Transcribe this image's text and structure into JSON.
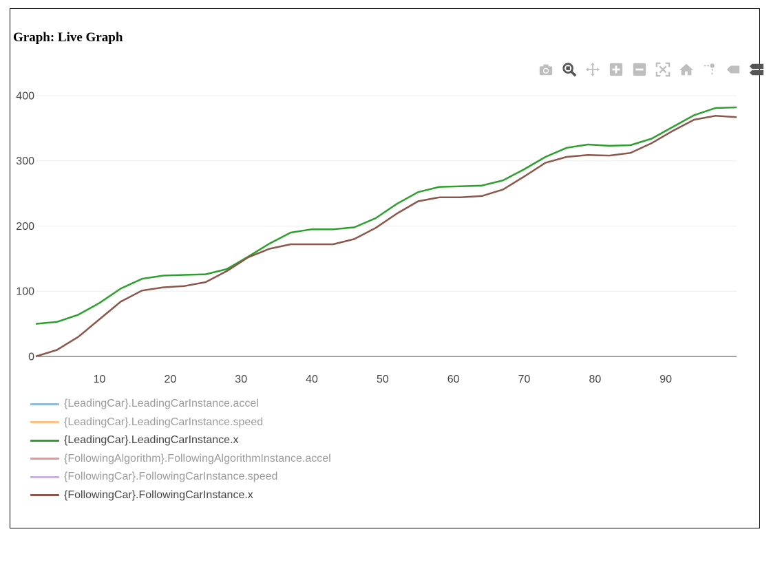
{
  "page": {
    "title": "Graph: Live Graph"
  },
  "modebar": {
    "buttons": [
      {
        "name": "camera-icon",
        "active": false
      },
      {
        "name": "zoom-icon",
        "active": true
      },
      {
        "name": "pan-icon",
        "active": false
      },
      {
        "name": "zoom-in-icon",
        "active": false
      },
      {
        "name": "zoom-out-icon",
        "active": false
      },
      {
        "name": "autoscale-icon",
        "active": false
      },
      {
        "name": "reset-axes-icon",
        "active": false
      },
      {
        "name": "spike-lines-icon",
        "active": false
      },
      {
        "name": "hover-closest-icon",
        "active": false
      },
      {
        "name": "hover-compare-icon",
        "active": true
      }
    ]
  },
  "chart_data": {
    "type": "line",
    "title": "",
    "xlabel": "",
    "ylabel": "",
    "xlim": [
      1,
      100
    ],
    "ylim": [
      0,
      420
    ],
    "xticks": [
      10,
      20,
      30,
      40,
      50,
      60,
      70,
      80,
      90
    ],
    "yticks": [
      0,
      100,
      200,
      300,
      400
    ],
    "grid": true,
    "legend_position": "bottom-left",
    "series": [
      {
        "name": "{LeadingCar}.LeadingCarInstance.accel",
        "color": "#1f77b4",
        "visible": false,
        "x": [],
        "y": []
      },
      {
        "name": "{LeadingCar}.LeadingCarInstance.speed",
        "color": "#ff7f0e",
        "visible": false,
        "x": [],
        "y": []
      },
      {
        "name": "{LeadingCar}.LeadingCarInstance.x",
        "color": "#2ca02c",
        "visible": true,
        "x": [
          1,
          4,
          7,
          10,
          13,
          16,
          19,
          22,
          25,
          28,
          31,
          34,
          37,
          40,
          43,
          46,
          49,
          52,
          55,
          58,
          61,
          64,
          67,
          70,
          73,
          76,
          79,
          82,
          85,
          88,
          91,
          94,
          97,
          100
        ],
        "y": [
          50,
          53,
          64,
          82,
          104,
          119,
          124,
          125,
          126,
          134,
          153,
          173,
          190,
          195,
          195,
          198,
          212,
          234,
          252,
          260,
          261,
          262,
          270,
          287,
          306,
          320,
          325,
          323,
          324,
          334,
          352,
          370,
          381,
          382
        ]
      },
      {
        "name": "{FollowingAlgorithm}.FollowingAlgorithmInstance.accel",
        "color": "#d62728",
        "visible": false,
        "x": [],
        "y": []
      },
      {
        "name": "{FollowingCar}.FollowingCarInstance.speed",
        "color": "#9467bd",
        "visible": false,
        "x": [],
        "y": []
      },
      {
        "name": "{FollowingCar}.FollowingCarInstance.x",
        "color": "#8c564b",
        "visible": true,
        "x": [
          1,
          4,
          7,
          10,
          13,
          16,
          19,
          22,
          25,
          28,
          31,
          34,
          37,
          40,
          43,
          46,
          49,
          52,
          55,
          58,
          61,
          64,
          67,
          70,
          73,
          76,
          79,
          82,
          85,
          88,
          91,
          94,
          97,
          100
        ],
        "y": [
          0,
          10,
          30,
          57,
          84,
          101,
          106,
          108,
          114,
          131,
          152,
          165,
          172,
          172,
          172,
          180,
          197,
          219,
          238,
          244,
          244,
          246,
          256,
          276,
          297,
          306,
          309,
          308,
          312,
          327,
          346,
          363,
          369,
          367
        ]
      }
    ]
  }
}
